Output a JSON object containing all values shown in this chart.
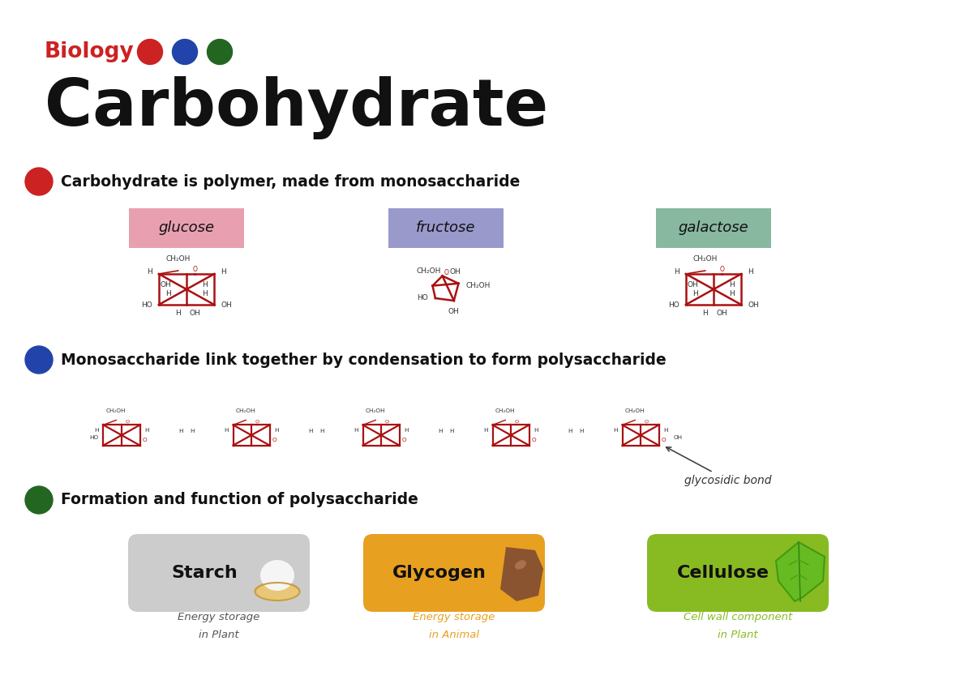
{
  "title_biology": "Biology",
  "title_main": "Carbohydrate",
  "dot_colors": [
    "#cc2222",
    "#2244aa",
    "#226622"
  ],
  "section1_bullet_color": "#cc2222",
  "section2_bullet_color": "#2244aa",
  "section3_bullet_color": "#226622",
  "section1_text": "Carbohydrate is polymer, made from monosaccharide",
  "section2_text": "Monosaccharide link together by condensation to form polysaccharide",
  "section3_text": "Formation and function of polysaccharide",
  "glucose_label": "glucose",
  "fructose_label": "fructose",
  "galactose_label": "galactose",
  "glucose_bg": "#e8a0b0",
  "fructose_bg": "#9999cc",
  "galactose_bg": "#88b8a0",
  "starch_label": "Starch",
  "glycogen_label": "Glycogen",
  "cellulose_label": "Cellulose",
  "starch_bg": "#cccccc",
  "glycogen_bg": "#e8a020",
  "cellulose_bg": "#88bb22",
  "starch_desc1": "Energy storage",
  "starch_desc2": "in Plant",
  "glycogen_desc1": "Energy storage",
  "glycogen_desc2": "in Animal",
  "cellulose_desc1": "Cell wall component",
  "cellulose_desc2": "in Plant",
  "starch_desc_color": "#555555",
  "glycogen_desc_color": "#e8a020",
  "cellulose_desc_color": "#88bb22",
  "molecule_color": "#aa1111",
  "label_color": "#333333",
  "glycosidic_bond_label": "glycosidic bond",
  "background_color": "#ffffff"
}
